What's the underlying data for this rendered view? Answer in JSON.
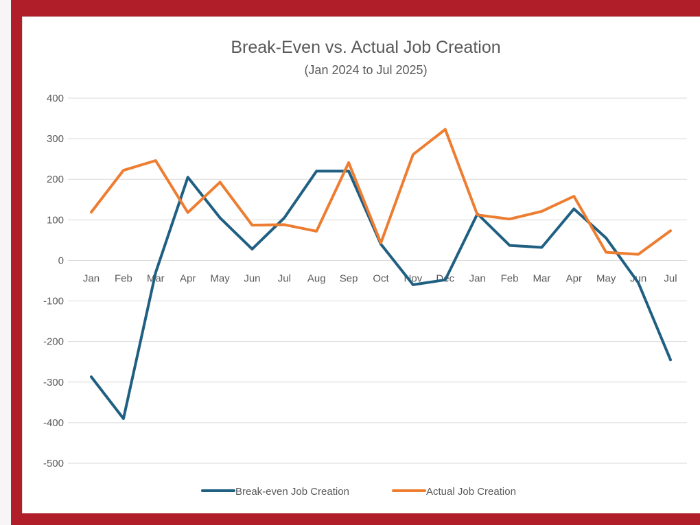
{
  "chart_data": {
    "type": "line",
    "title": "Break-Even  vs. Actual Job Creation",
    "subtitle": "(Jan 2024 to Jul 2025)",
    "categories": [
      "Jan",
      "Feb",
      "Mar",
      "Apr",
      "May",
      "Jun",
      "Jul",
      "Aug",
      "Sep",
      "Oct",
      "Nov",
      "Dec",
      "Jan",
      "Feb",
      "Mar",
      "Apr",
      "May",
      "Jun",
      "Jul"
    ],
    "ylim": [
      -500,
      400
    ],
    "yticks": [
      "400",
      "300",
      "200",
      "100",
      "0",
      "-100",
      "-200",
      "-300",
      "-400",
      "-500"
    ],
    "grid": true,
    "legend_position": "bottom",
    "series": [
      {
        "name": "Break-even Job Creation",
        "color": "#1f5f82",
        "values": [
          -287,
          -390,
          -30,
          205,
          105,
          28,
          105,
          220,
          220,
          40,
          -60,
          -48,
          115,
          37,
          32,
          127,
          55,
          -55,
          -245
        ]
      },
      {
        "name": "Actual Job Creation",
        "color": "#ed7d31",
        "values": [
          119,
          222,
          246,
          118,
          193,
          87,
          88,
          72,
          241,
          43,
          261,
          323,
          112,
          102,
          121,
          158,
          20,
          15,
          73
        ]
      }
    ]
  }
}
